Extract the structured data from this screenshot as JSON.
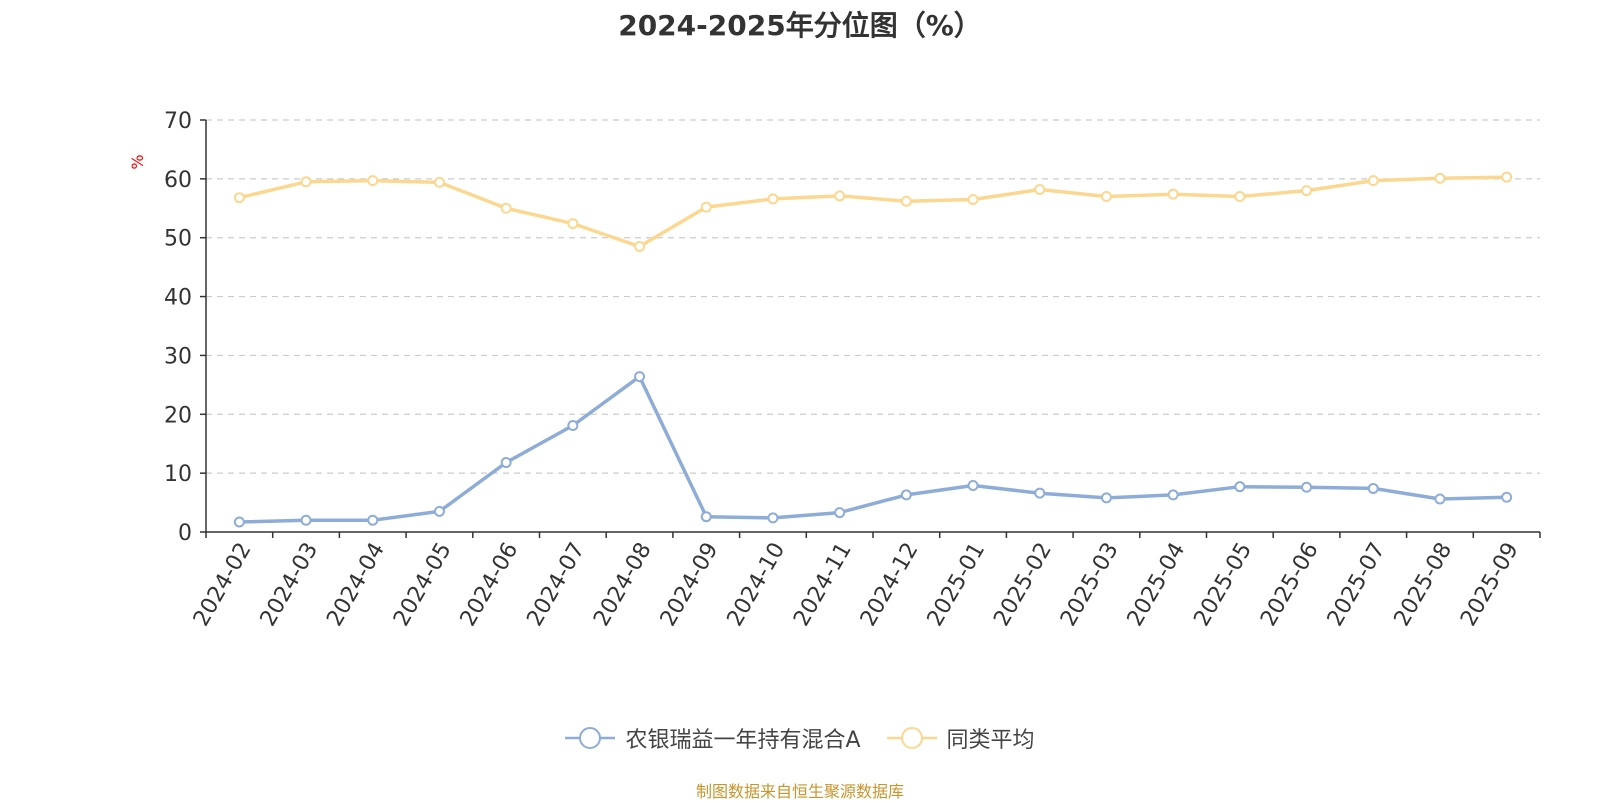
{
  "title": "2024-2025年分位图（%）",
  "source": "制图数据来自恒生聚源数据库",
  "chart_data": {
    "type": "line",
    "ylabel": "%",
    "ylim": [
      0,
      70
    ],
    "yticks": [
      0,
      10,
      20,
      30,
      40,
      50,
      60,
      70
    ],
    "grid": true,
    "legend_position": "bottom",
    "categories": [
      "2024-02",
      "2024-03",
      "2024-04",
      "2024-05",
      "2024-06",
      "2024-07",
      "2024-08",
      "2024-09",
      "2024-10",
      "2024-11",
      "2024-12",
      "2025-01",
      "2025-02",
      "2025-03",
      "2025-04",
      "2025-05",
      "2025-06",
      "2025-07",
      "2025-08",
      "2025-09"
    ],
    "series": [
      {
        "name": "农银瑞益一年持有混合A",
        "color": "#8eacd8",
        "values": [
          1.7,
          2.0,
          2.0,
          3.5,
          11.8,
          18.1,
          26.4,
          2.6,
          2.4,
          3.3,
          6.3,
          7.9,
          6.6,
          5.8,
          6.3,
          7.7,
          7.6,
          7.4,
          5.6,
          5.9
        ]
      },
      {
        "name": "同类平均",
        "color": "#fcd790",
        "values": [
          56.8,
          59.5,
          59.7,
          59.4,
          55.0,
          52.4,
          48.5,
          55.2,
          56.6,
          57.1,
          56.2,
          56.5,
          58.2,
          57.0,
          57.4,
          57.0,
          58.0,
          59.7,
          60.1,
          60.3
        ]
      }
    ]
  }
}
